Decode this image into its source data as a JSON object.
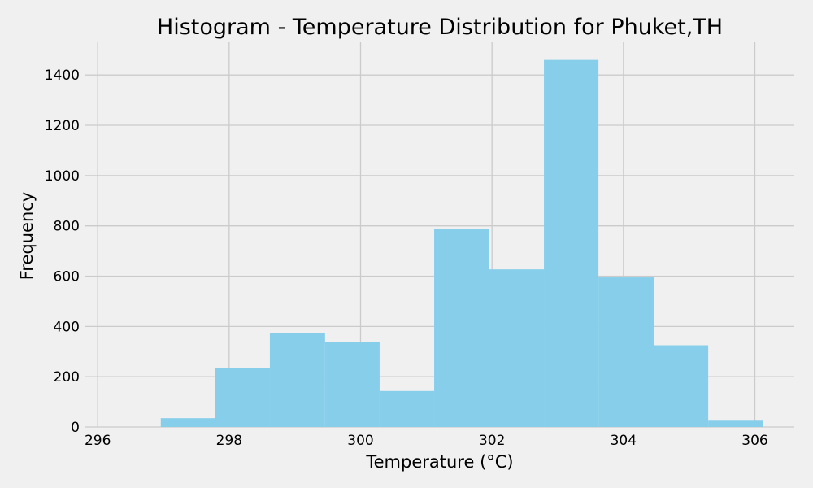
{
  "chart_data": {
    "type": "bar",
    "title": "Histogram - Temperature Distribution for Phuket,TH",
    "xlabel": "Temperature (°C)",
    "ylabel": "Frequency",
    "xlim": [
      295.8,
      306.6
    ],
    "ylim": [
      0,
      1530
    ],
    "xticks": [
      296,
      298,
      300,
      302,
      304,
      306
    ],
    "yticks": [
      0,
      200,
      400,
      600,
      800,
      1000,
      1200,
      1400
    ],
    "grid": true,
    "bar_color": "#87ceeb",
    "bins": [
      {
        "x0": 296.96,
        "x1": 297.79,
        "value": 35
      },
      {
        "x0": 297.79,
        "x1": 298.62,
        "value": 235
      },
      {
        "x0": 298.62,
        "x1": 299.46,
        "value": 375
      },
      {
        "x0": 299.46,
        "x1": 300.29,
        "value": 338
      },
      {
        "x0": 300.29,
        "x1": 301.12,
        "value": 143
      },
      {
        "x0": 301.12,
        "x1": 301.96,
        "value": 787
      },
      {
        "x0": 301.96,
        "x1": 302.79,
        "value": 627
      },
      {
        "x0": 302.79,
        "x1": 303.62,
        "value": 1460
      },
      {
        "x0": 303.62,
        "x1": 304.46,
        "value": 595
      },
      {
        "x0": 304.46,
        "x1": 305.29,
        "value": 325
      },
      {
        "x0": 305.29,
        "x1": 306.12,
        "value": 25
      }
    ]
  }
}
